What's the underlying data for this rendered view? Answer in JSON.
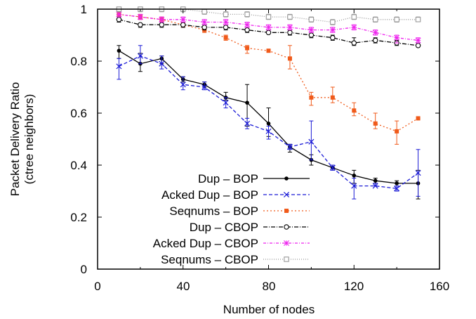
{
  "chart_data": {
    "type": "line",
    "xlabel": "Number of nodes",
    "ylabel": [
      "Packet Delivery Ratio",
      "(ctree neighbors)"
    ],
    "xlim": [
      0,
      160
    ],
    "ylim": [
      0,
      1
    ],
    "xticks": [
      "0",
      "40",
      "80",
      "120",
      "160"
    ],
    "yticks": [
      "0",
      "0.2",
      "0.4",
      "0.6",
      "0.8",
      "1"
    ],
    "legend_position": "bottom-right",
    "grid": false,
    "series": [
      {
        "name": "Dup – BOP",
        "color": "#000000",
        "dash": "",
        "marker": "filled-circle",
        "x": [
          10,
          20,
          30,
          40,
          50,
          60,
          70,
          80,
          90,
          100,
          110,
          120,
          130,
          140,
          150
        ],
        "y": [
          0.84,
          0.79,
          0.81,
          0.73,
          0.71,
          0.66,
          0.64,
          0.56,
          0.47,
          0.42,
          0.39,
          0.36,
          0.34,
          0.33,
          0.33
        ],
        "err": [
          [
            0.81,
            0.86
          ],
          [
            0.76,
            0.83
          ],
          [
            0.79,
            0.82
          ],
          [
            0.72,
            0.74
          ],
          [
            0.7,
            0.72
          ],
          [
            0.65,
            0.68
          ],
          [
            0.55,
            0.71
          ],
          [
            0.51,
            0.62
          ],
          [
            0.45,
            0.48
          ],
          [
            0.4,
            0.44
          ],
          [
            0.39,
            0.39
          ],
          [
            0.33,
            0.38
          ],
          [
            0.33,
            0.35
          ],
          [
            0.33,
            0.34
          ],
          [
            0.27,
            0.38
          ]
        ]
      },
      {
        "name": "Acked Dup – BOP",
        "color": "#1a1ad6",
        "dash": "5,3",
        "marker": "x",
        "x": [
          10,
          20,
          30,
          40,
          50,
          60,
          70,
          80,
          90,
          100,
          110,
          120,
          130,
          140,
          150
        ],
        "y": [
          0.78,
          0.82,
          0.79,
          0.71,
          0.7,
          0.64,
          0.56,
          0.53,
          0.47,
          0.49,
          0.39,
          0.32,
          0.32,
          0.31,
          0.37
        ],
        "err": [
          [
            0.73,
            0.81
          ],
          [
            0.79,
            0.86
          ],
          [
            0.77,
            0.82
          ],
          [
            0.69,
            0.74
          ],
          [
            0.69,
            0.72
          ],
          [
            0.62,
            0.66
          ],
          [
            0.54,
            0.58
          ],
          [
            0.5,
            0.55
          ],
          [
            0.46,
            0.48
          ],
          [
            0.42,
            0.57
          ],
          [
            0.38,
            0.4
          ],
          [
            0.27,
            0.35
          ],
          [
            0.32,
            0.33
          ],
          [
            0.3,
            0.32
          ],
          [
            0.28,
            0.46
          ]
        ]
      },
      {
        "name": "Seqnums – BOP",
        "color": "#f05a1a",
        "dash": "2,3",
        "marker": "filled-square",
        "x": [
          10,
          20,
          30,
          40,
          50,
          60,
          70,
          80,
          90,
          100,
          110,
          120,
          130,
          140,
          150
        ],
        "y": [
          0.98,
          0.97,
          0.96,
          0.94,
          0.92,
          0.89,
          0.85,
          0.84,
          0.81,
          0.66,
          0.66,
          0.61,
          0.56,
          0.53,
          0.58
        ],
        "err": [
          [
            0.97,
            0.99
          ],
          [
            0.96,
            0.98
          ],
          [
            0.95,
            0.97
          ],
          [
            0.93,
            0.95
          ],
          [
            0.91,
            0.93
          ],
          [
            0.88,
            0.9
          ],
          [
            0.83,
            0.86
          ],
          [
            0.84,
            0.84
          ],
          [
            0.77,
            0.86
          ],
          [
            0.63,
            0.68
          ],
          [
            0.64,
            0.7
          ],
          [
            0.59,
            0.64
          ],
          [
            0.54,
            0.6
          ],
          [
            0.48,
            0.57
          ],
          [
            0.58,
            0.58
          ]
        ]
      },
      {
        "name": "Dup – CBOP",
        "color": "#000000",
        "dash": "6,2,1,2",
        "marker": "open-circle",
        "x": [
          10,
          20,
          30,
          40,
          50,
          60,
          70,
          80,
          90,
          100,
          110,
          120,
          130,
          140,
          150
        ],
        "y": [
          0.96,
          0.94,
          0.94,
          0.94,
          0.93,
          0.93,
          0.92,
          0.91,
          0.91,
          0.9,
          0.89,
          0.87,
          0.88,
          0.87,
          0.86
        ],
        "err": [
          [
            0.95,
            0.97
          ],
          [
            0.93,
            0.94
          ],
          [
            0.93,
            0.94
          ],
          [
            0.93,
            0.94
          ],
          [
            0.92,
            0.94
          ],
          [
            0.92,
            0.93
          ],
          [
            0.91,
            0.92
          ],
          [
            0.91,
            0.92
          ],
          [
            0.9,
            0.92
          ],
          [
            0.89,
            0.9
          ],
          [
            0.88,
            0.9
          ],
          [
            0.86,
            0.89
          ],
          [
            0.87,
            0.89
          ],
          [
            0.86,
            0.88
          ],
          [
            0.86,
            0.87
          ]
        ]
      },
      {
        "name": "Acked Dup – CBOP",
        "color": "#ee22ee",
        "dash": "4,2,1,2",
        "marker": "star",
        "x": [
          10,
          20,
          30,
          40,
          50,
          60,
          70,
          80,
          90,
          100,
          110,
          120,
          130,
          140,
          150
        ],
        "y": [
          0.98,
          0.97,
          0.96,
          0.96,
          0.95,
          0.95,
          0.94,
          0.93,
          0.93,
          0.92,
          0.92,
          0.93,
          0.91,
          0.89,
          0.88
        ],
        "err": [
          [
            0.97,
            0.99
          ],
          [
            0.96,
            0.98
          ],
          [
            0.95,
            0.97
          ],
          [
            0.95,
            0.97
          ],
          [
            0.94,
            0.96
          ],
          [
            0.94,
            0.96
          ],
          [
            0.93,
            0.95
          ],
          [
            0.92,
            0.94
          ],
          [
            0.92,
            0.94
          ],
          [
            0.91,
            0.93
          ],
          [
            0.91,
            0.93
          ],
          [
            0.92,
            0.94
          ],
          [
            0.9,
            0.92
          ],
          [
            0.87,
            0.9
          ],
          [
            0.87,
            0.89
          ]
        ]
      },
      {
        "name": "Seqnums – CBOP",
        "color": "#999999",
        "dash": "1,2",
        "marker": "open-square",
        "x": [
          10,
          20,
          30,
          40,
          50,
          60,
          70,
          80,
          90,
          100,
          110,
          120,
          130,
          140,
          150
        ],
        "y": [
          1.0,
          1.0,
          1.0,
          1.0,
          0.99,
          0.98,
          0.98,
          0.97,
          0.97,
          0.96,
          0.95,
          0.97,
          0.96,
          0.96,
          0.96
        ],
        "err": [
          [
            0.99,
            1.0
          ],
          [
            0.99,
            1.0
          ],
          [
            0.99,
            1.0
          ],
          [
            0.99,
            1.0
          ],
          [
            0.98,
            1.0
          ],
          [
            0.97,
            0.99
          ],
          [
            0.97,
            0.99
          ],
          [
            0.96,
            0.98
          ],
          [
            0.96,
            0.98
          ],
          [
            0.95,
            0.97
          ],
          [
            0.94,
            0.96
          ],
          [
            0.96,
            0.98
          ],
          [
            0.95,
            0.97
          ],
          [
            0.95,
            0.97
          ],
          [
            0.96,
            0.97
          ]
        ]
      }
    ]
  }
}
